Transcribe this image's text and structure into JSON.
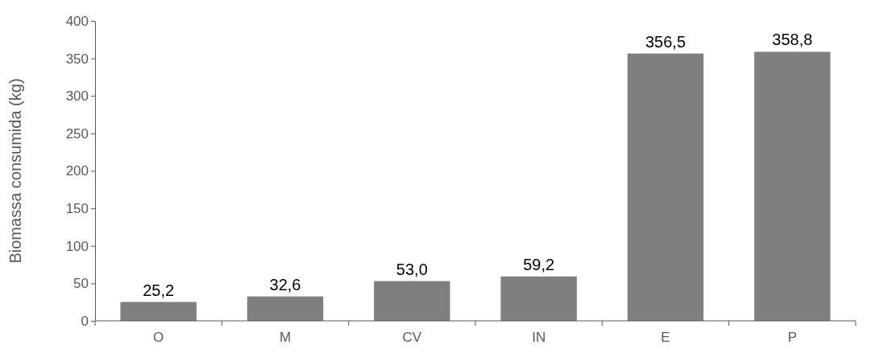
{
  "chart_data": {
    "type": "bar",
    "ylabel": "Biomassa consumida (kg)",
    "categories": [
      "O",
      "M",
      "CV",
      "IN",
      "E",
      "P"
    ],
    "values": [
      25.2,
      32.6,
      53.0,
      59.2,
      356.5,
      358.8
    ],
    "value_labels": [
      "25,2",
      "32,6",
      "53,0",
      "59,2",
      "356,5",
      "358,8"
    ],
    "color": "#7f7f7f",
    "ylim": [
      0,
      400
    ],
    "yticks": [
      0,
      50,
      100,
      150,
      200,
      250,
      300,
      350,
      400
    ],
    "grid": false
  }
}
